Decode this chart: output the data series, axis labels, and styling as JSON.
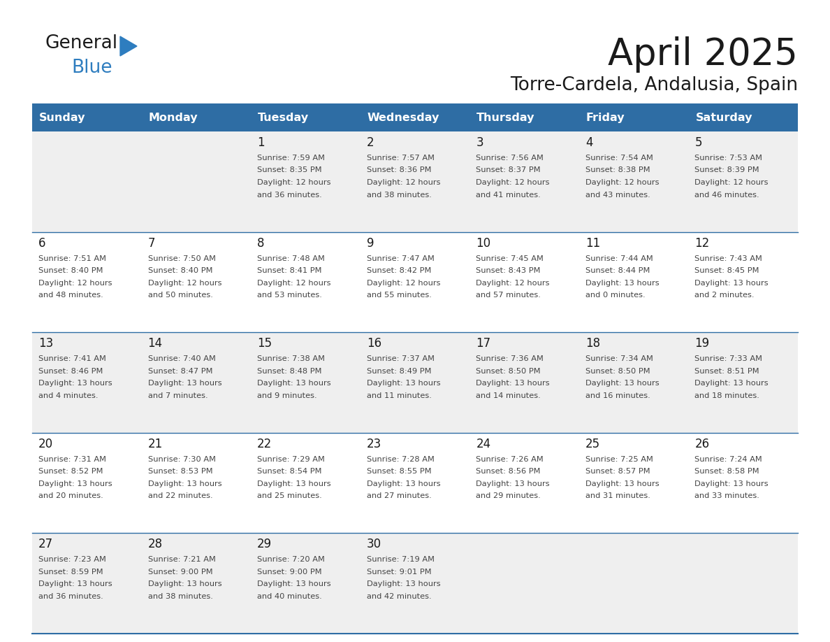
{
  "title": "April 2025",
  "subtitle": "Torre-Cardela, Andalusia, Spain",
  "header_bg": "#2E6DA4",
  "header_text_color": "#FFFFFF",
  "cell_bg_light": "#EFEFEF",
  "cell_bg_white": "#FFFFFF",
  "day_headers": [
    "Sunday",
    "Monday",
    "Tuesday",
    "Wednesday",
    "Thursday",
    "Friday",
    "Saturday"
  ],
  "title_color": "#1a1a1a",
  "subtitle_color": "#1a1a1a",
  "day_num_color": "#1a1a1a",
  "cell_text_color": "#444444",
  "line_color": "#2E6DA4",
  "logo_color1": "#1a1a1a",
  "logo_color2": "#2E7DBF",
  "weeks": [
    [
      {
        "day": null,
        "info": ""
      },
      {
        "day": null,
        "info": ""
      },
      {
        "day": 1,
        "info": "Sunrise: 7:59 AM\nSunset: 8:35 PM\nDaylight: 12 hours\nand 36 minutes."
      },
      {
        "day": 2,
        "info": "Sunrise: 7:57 AM\nSunset: 8:36 PM\nDaylight: 12 hours\nand 38 minutes."
      },
      {
        "day": 3,
        "info": "Sunrise: 7:56 AM\nSunset: 8:37 PM\nDaylight: 12 hours\nand 41 minutes."
      },
      {
        "day": 4,
        "info": "Sunrise: 7:54 AM\nSunset: 8:38 PM\nDaylight: 12 hours\nand 43 minutes."
      },
      {
        "day": 5,
        "info": "Sunrise: 7:53 AM\nSunset: 8:39 PM\nDaylight: 12 hours\nand 46 minutes."
      }
    ],
    [
      {
        "day": 6,
        "info": "Sunrise: 7:51 AM\nSunset: 8:40 PM\nDaylight: 12 hours\nand 48 minutes."
      },
      {
        "day": 7,
        "info": "Sunrise: 7:50 AM\nSunset: 8:40 PM\nDaylight: 12 hours\nand 50 minutes."
      },
      {
        "day": 8,
        "info": "Sunrise: 7:48 AM\nSunset: 8:41 PM\nDaylight: 12 hours\nand 53 minutes."
      },
      {
        "day": 9,
        "info": "Sunrise: 7:47 AM\nSunset: 8:42 PM\nDaylight: 12 hours\nand 55 minutes."
      },
      {
        "day": 10,
        "info": "Sunrise: 7:45 AM\nSunset: 8:43 PM\nDaylight: 12 hours\nand 57 minutes."
      },
      {
        "day": 11,
        "info": "Sunrise: 7:44 AM\nSunset: 8:44 PM\nDaylight: 13 hours\nand 0 minutes."
      },
      {
        "day": 12,
        "info": "Sunrise: 7:43 AM\nSunset: 8:45 PM\nDaylight: 13 hours\nand 2 minutes."
      }
    ],
    [
      {
        "day": 13,
        "info": "Sunrise: 7:41 AM\nSunset: 8:46 PM\nDaylight: 13 hours\nand 4 minutes."
      },
      {
        "day": 14,
        "info": "Sunrise: 7:40 AM\nSunset: 8:47 PM\nDaylight: 13 hours\nand 7 minutes."
      },
      {
        "day": 15,
        "info": "Sunrise: 7:38 AM\nSunset: 8:48 PM\nDaylight: 13 hours\nand 9 minutes."
      },
      {
        "day": 16,
        "info": "Sunrise: 7:37 AM\nSunset: 8:49 PM\nDaylight: 13 hours\nand 11 minutes."
      },
      {
        "day": 17,
        "info": "Sunrise: 7:36 AM\nSunset: 8:50 PM\nDaylight: 13 hours\nand 14 minutes."
      },
      {
        "day": 18,
        "info": "Sunrise: 7:34 AM\nSunset: 8:50 PM\nDaylight: 13 hours\nand 16 minutes."
      },
      {
        "day": 19,
        "info": "Sunrise: 7:33 AM\nSunset: 8:51 PM\nDaylight: 13 hours\nand 18 minutes."
      }
    ],
    [
      {
        "day": 20,
        "info": "Sunrise: 7:31 AM\nSunset: 8:52 PM\nDaylight: 13 hours\nand 20 minutes."
      },
      {
        "day": 21,
        "info": "Sunrise: 7:30 AM\nSunset: 8:53 PM\nDaylight: 13 hours\nand 22 minutes."
      },
      {
        "day": 22,
        "info": "Sunrise: 7:29 AM\nSunset: 8:54 PM\nDaylight: 13 hours\nand 25 minutes."
      },
      {
        "day": 23,
        "info": "Sunrise: 7:28 AM\nSunset: 8:55 PM\nDaylight: 13 hours\nand 27 minutes."
      },
      {
        "day": 24,
        "info": "Sunrise: 7:26 AM\nSunset: 8:56 PM\nDaylight: 13 hours\nand 29 minutes."
      },
      {
        "day": 25,
        "info": "Sunrise: 7:25 AM\nSunset: 8:57 PM\nDaylight: 13 hours\nand 31 minutes."
      },
      {
        "day": 26,
        "info": "Sunrise: 7:24 AM\nSunset: 8:58 PM\nDaylight: 13 hours\nand 33 minutes."
      }
    ],
    [
      {
        "day": 27,
        "info": "Sunrise: 7:23 AM\nSunset: 8:59 PM\nDaylight: 13 hours\nand 36 minutes."
      },
      {
        "day": 28,
        "info": "Sunrise: 7:21 AM\nSunset: 9:00 PM\nDaylight: 13 hours\nand 38 minutes."
      },
      {
        "day": 29,
        "info": "Sunrise: 7:20 AM\nSunset: 9:00 PM\nDaylight: 13 hours\nand 40 minutes."
      },
      {
        "day": 30,
        "info": "Sunrise: 7:19 AM\nSunset: 9:01 PM\nDaylight: 13 hours\nand 42 minutes."
      },
      {
        "day": null,
        "info": ""
      },
      {
        "day": null,
        "info": ""
      },
      {
        "day": null,
        "info": ""
      }
    ]
  ]
}
